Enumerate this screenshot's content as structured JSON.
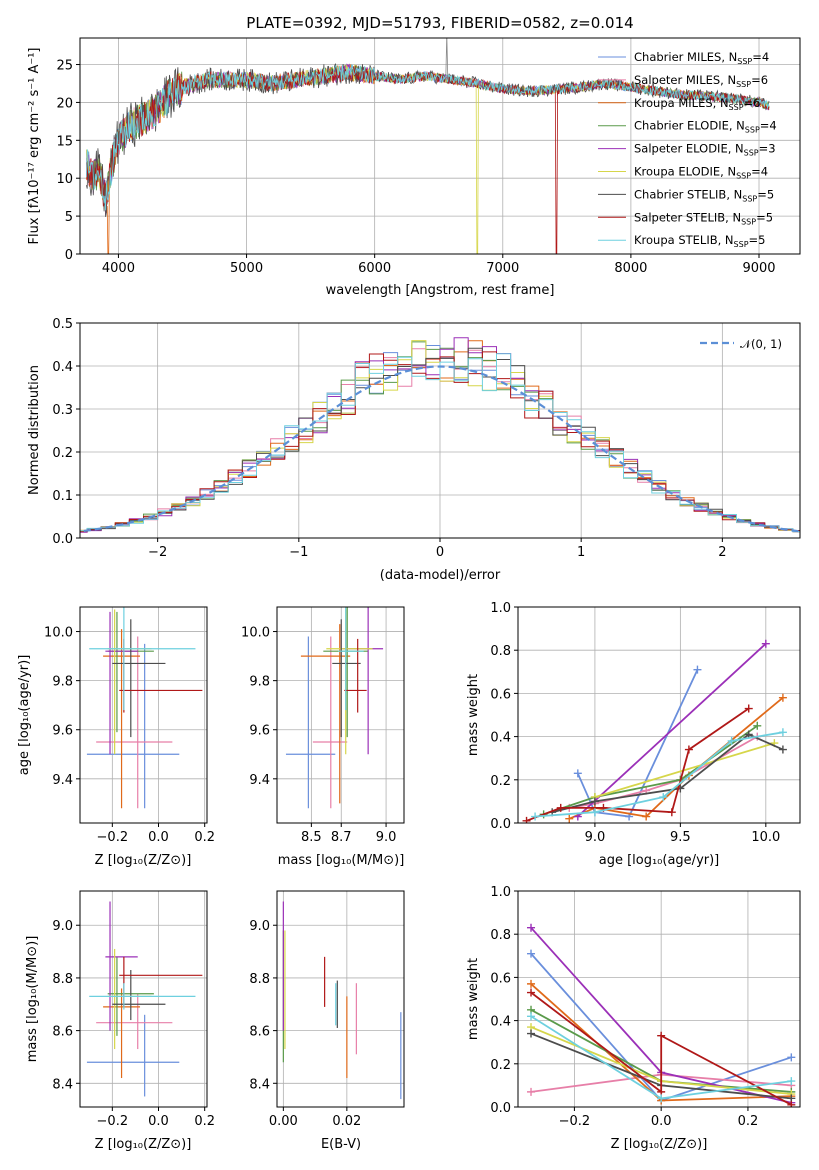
{
  "chart_data": [
    {
      "type": "line",
      "title": "PLATE=0392, MJD=51793, FIBERID=0582, z=0.014",
      "xlabel": "wavelength [Angstrom, rest frame]",
      "ylabel": "Flux [fλ10⁻¹⁷ erg cm⁻² s⁻¹ A⁻¹]",
      "xlim": [
        3700,
        9320
      ],
      "ylim": [
        0,
        28.5
      ],
      "xticks": [
        4000,
        5000,
        6000,
        7000,
        8000,
        9000
      ],
      "yticks": [
        0,
        5,
        10,
        15,
        20,
        25
      ],
      "legend_position": "top-right",
      "series": [
        {
          "name": "Chabrier MILES, N_SSP=4",
          "color": "#6a8fdc"
        },
        {
          "name": "Salpeter MILES, N_SSP=6",
          "color": "#e77fa8"
        },
        {
          "name": "Kroupa MILES, N_SSP=6",
          "color": "#e06a1a"
        },
        {
          "name": "Chabrier ELODIE, N_SSP=4",
          "color": "#5a9a4a"
        },
        {
          "name": "Salpeter ELODIE, N_SSP=3",
          "color": "#9b30b8"
        },
        {
          "name": "Kroupa ELODIE, N_SSP=4",
          "color": "#d6d64a"
        },
        {
          "name": "Chabrier STELIB, N_SSP=5",
          "color": "#4d4d4d"
        },
        {
          "name": "Salpeter STELIB, N_SSP=5",
          "color": "#b01818"
        },
        {
          "name": "Kroupa STELIB, N_SSP=5",
          "color": "#6ed0df"
        }
      ],
      "continuum": [
        [
          3750,
          12
        ],
        [
          3800,
          10
        ],
        [
          3850,
          11
        ],
        [
          3900,
          7
        ],
        [
          3950,
          12
        ],
        [
          4000,
          15
        ],
        [
          4100,
          17
        ],
        [
          4200,
          18
        ],
        [
          4300,
          19
        ],
        [
          4400,
          21
        ],
        [
          4500,
          22
        ],
        [
          4600,
          22.5
        ],
        [
          4700,
          23
        ],
        [
          4800,
          23
        ],
        [
          4900,
          23
        ],
        [
          5000,
          23
        ],
        [
          5200,
          22.5
        ],
        [
          5400,
          23
        ],
        [
          5600,
          23.5
        ],
        [
          5800,
          24
        ],
        [
          6000,
          23.5
        ],
        [
          6200,
          23
        ],
        [
          6400,
          23.5
        ],
        [
          6600,
          23
        ],
        [
          6800,
          22.5
        ],
        [
          7000,
          21.8
        ],
        [
          7200,
          21.5
        ],
        [
          7400,
          21.7
        ],
        [
          7600,
          22
        ],
        [
          7800,
          22.5
        ],
        [
          8000,
          22
        ],
        [
          8200,
          21.5
        ],
        [
          8400,
          21
        ],
        [
          8600,
          20.8
        ],
        [
          8800,
          20.5
        ],
        [
          9000,
          20
        ],
        [
          9080,
          19.5
        ]
      ],
      "drops": [
        {
          "series": "Kroupa MILES, N_SSP=6",
          "x": 3920,
          "to": 0
        },
        {
          "series": "Kroupa ELODIE, N_SSP=4",
          "x": 6800,
          "to": 0
        },
        {
          "series": "Salpeter STELIB, N_SSP=5",
          "x": 7420,
          "to": 0
        }
      ]
    },
    {
      "type": "histogram",
      "xlabel": "(data-model)/error",
      "ylabel": "Normed distribution",
      "xlim": [
        -2.55,
        2.55
      ],
      "ylim": [
        0,
        0.5
      ],
      "xticks": [
        -2,
        -1,
        0,
        1,
        2
      ],
      "yticks": [
        0.0,
        0.1,
        0.2,
        0.3,
        0.4,
        0.5
      ],
      "bin_width": 0.1,
      "legend": {
        "label": "𝒩(0, 1)",
        "position": "top-right"
      },
      "reference_curve": {
        "name": "𝒩(0, 1)",
        "mean": 0,
        "sigma": 1,
        "color": "#5b8fd6",
        "style": "dashed"
      }
    },
    {
      "type": "scatter",
      "xlabel": "Z [log₁₀(Z/Z⊙)]",
      "ylabel": "age  [log₁₀(age/yr)]",
      "xlim": [
        -0.34,
        0.21
      ],
      "ylim": [
        9.22,
        10.1
      ],
      "xticks": [
        -0.2,
        0.0,
        0.2
      ],
      "yticks": [
        9.4,
        9.6,
        9.8,
        10.0
      ],
      "errorbars": [
        {
          "color": "#6a8fdc",
          "x": -0.06,
          "xerr": [
            0.25,
            0.15
          ],
          "y": 9.5,
          "yerr": [
            0.22,
            0.45
          ]
        },
        {
          "color": "#e77fa8",
          "x": -0.09,
          "xerr": [
            0.18,
            0.15
          ],
          "y": 9.55,
          "yerr": [
            0.27,
            0.43
          ]
        },
        {
          "color": "#e06a1a",
          "x": -0.16,
          "xerr": [
            0.08,
            0.08
          ],
          "y": 9.9,
          "yerr": [
            0.62,
            0.11
          ]
        },
        {
          "color": "#5a9a4a",
          "x": -0.18,
          "xerr": [
            0.04,
            0.16
          ],
          "y": 9.92,
          "yerr": [
            0.33,
            0.16
          ]
        },
        {
          "color": "#9b30b8",
          "x": -0.21,
          "xerr": [
            0.02,
            0.12
          ],
          "y": 9.92,
          "yerr": [
            0.42,
            0.16
          ]
        },
        {
          "color": "#d6d64a",
          "x": -0.19,
          "xerr": [
            0.03,
            0.16
          ],
          "y": 9.93,
          "yerr": [
            0.43,
            0.16
          ]
        },
        {
          "color": "#4d4d4d",
          "x": -0.12,
          "xerr": [
            0.08,
            0.15
          ],
          "y": 9.87,
          "yerr": [
            0.3,
            0.18
          ]
        },
        {
          "color": "#b01818",
          "x": -0.15,
          "xerr": [
            0.02,
            0.34
          ],
          "y": 9.76,
          "yerr": [
            0.09,
            0.21
          ]
        },
        {
          "color": "#6ed0df",
          "x": -0.15,
          "xerr": [
            0.15,
            0.31
          ],
          "y": 9.93,
          "yerr": [
            0.25,
            0.17
          ]
        }
      ]
    },
    {
      "type": "scatter",
      "xlabel": "mass [log₁₀(M/M⊙)]",
      "ylabel": "",
      "xlim": [
        8.27,
        9.12
      ],
      "ylim": [
        9.22,
        10.1
      ],
      "xticks": [
        8.5,
        8.7,
        9.0
      ],
      "yticks": [
        9.4,
        9.6,
        9.8,
        10.0
      ],
      "errorbars": [
        {
          "color": "#6a8fdc",
          "x": 8.48,
          "xerr": [
            0.15,
            0.18
          ],
          "y": 9.5,
          "yerr": [
            0.22,
            0.48
          ]
        },
        {
          "color": "#e77fa8",
          "x": 8.63,
          "xerr": [
            0.12,
            0.11
          ],
          "y": 9.55,
          "yerr": [
            0.27,
            0.43
          ]
        },
        {
          "color": "#e06a1a",
          "x": 8.69,
          "xerr": [
            0.26,
            0.07
          ],
          "y": 9.9,
          "yerr": [
            0.6,
            0.13
          ]
        },
        {
          "color": "#5a9a4a",
          "x": 8.74,
          "xerr": [
            0.16,
            0.14
          ],
          "y": 9.92,
          "yerr": [
            0.35,
            0.18
          ]
        },
        {
          "color": "#9b30b8",
          "x": 8.88,
          "xerr": [
            0.17,
            0.1
          ],
          "y": 9.93,
          "yerr": [
            0.43,
            0.17
          ]
        },
        {
          "color": "#d6d64a",
          "x": 8.73,
          "xerr": [
            0.13,
            0.18
          ],
          "y": 9.93,
          "yerr": [
            0.43,
            0.16
          ]
        },
        {
          "color": "#4d4d4d",
          "x": 8.7,
          "xerr": [
            0.06,
            0.13
          ],
          "y": 9.87,
          "yerr": [
            0.3,
            0.18
          ]
        },
        {
          "color": "#b01818",
          "x": 8.81,
          "xerr": [
            0.09,
            0.06
          ],
          "y": 9.76,
          "yerr": [
            0.09,
            0.21
          ]
        },
        {
          "color": "#6ed0df",
          "x": 8.73,
          "xerr": [
            0.05,
            0.12
          ],
          "y": 9.92,
          "yerr": [
            0.24,
            0.18
          ]
        }
      ]
    },
    {
      "type": "line",
      "xlabel": "age  [log₁₀(age/yr)]",
      "ylabel": "mass weight",
      "xlim": [
        8.55,
        10.2
      ],
      "ylim": [
        0,
        1.0
      ],
      "xticks": [
        9.0,
        9.5,
        10.0
      ],
      "yticks": [
        0.0,
        0.2,
        0.4,
        0.6,
        0.8,
        1.0
      ],
      "series": [
        {
          "color": "#6a8fdc",
          "x": [
            8.9,
            9.0,
            9.2,
            9.6
          ],
          "y": [
            0.23,
            0.05,
            0.03,
            0.71
          ]
        },
        {
          "color": "#e77fa8",
          "x": [
            8.85,
            9.0,
            9.3,
            9.5,
            9.95
          ],
          "y": [
            0.07,
            0.09,
            0.15,
            0.2,
            0.4
          ]
        },
        {
          "color": "#e06a1a",
          "x": [
            8.85,
            9.0,
            9.3,
            9.55,
            10.1
          ],
          "y": [
            0.02,
            0.07,
            0.03,
            0.22,
            0.58
          ]
        },
        {
          "color": "#5a9a4a",
          "x": [
            8.7,
            9.0,
            9.5,
            9.95
          ],
          "y": [
            0.04,
            0.12,
            0.2,
            0.45
          ]
        },
        {
          "color": "#9b30b8",
          "x": [
            8.9,
            10.0
          ],
          "y": [
            0.03,
            0.83
          ]
        },
        {
          "color": "#d6d64a",
          "x": [
            9.0,
            10.05
          ],
          "y": [
            0.12,
            0.37
          ]
        },
        {
          "color": "#4d4d4d",
          "x": [
            8.75,
            9.0,
            9.5,
            9.9,
            10.1
          ],
          "y": [
            0.05,
            0.1,
            0.16,
            0.41,
            0.34
          ]
        },
        {
          "color": "#b01818",
          "x": [
            8.6,
            8.8,
            9.05,
            9.45,
            9.55,
            9.9
          ],
          "y": [
            0.01,
            0.07,
            0.07,
            0.05,
            0.34,
            0.53
          ]
        },
        {
          "color": "#6ed0df",
          "x": [
            8.65,
            9.0,
            9.4,
            9.8,
            10.1
          ],
          "y": [
            0.03,
            0.05,
            0.12,
            0.38,
            0.42
          ]
        }
      ]
    },
    {
      "type": "scatter",
      "xlabel": "Z [log₁₀(Z/Z⊙)]",
      "ylabel": "mass [log₁₀(M/M⊙)]",
      "xlim": [
        -0.34,
        0.21
      ],
      "ylim": [
        8.31,
        9.13
      ],
      "xticks": [
        -0.2,
        0.0,
        0.2
      ],
      "yticks": [
        8.4,
        8.6,
        8.8,
        9.0
      ],
      "errorbars": [
        {
          "color": "#6a8fdc",
          "x": -0.06,
          "xerr": [
            0.25,
            0.15
          ],
          "y": 8.48,
          "yerr": [
            0.13,
            0.18
          ]
        },
        {
          "color": "#e77fa8",
          "x": -0.09,
          "xerr": [
            0.18,
            0.15
          ],
          "y": 8.63,
          "yerr": [
            0.1,
            0.11
          ]
        },
        {
          "color": "#e06a1a",
          "x": -0.16,
          "xerr": [
            0.08,
            0.08
          ],
          "y": 8.69,
          "yerr": [
            0.27,
            0.07
          ]
        },
        {
          "color": "#5a9a4a",
          "x": -0.18,
          "xerr": [
            0.04,
            0.16
          ],
          "y": 8.74,
          "yerr": [
            0.16,
            0.14
          ]
        },
        {
          "color": "#9b30b8",
          "x": -0.21,
          "xerr": [
            0.02,
            0.12
          ],
          "y": 8.88,
          "yerr": [
            0.28,
            0.21
          ]
        },
        {
          "color": "#d6d64a",
          "x": -0.19,
          "xerr": [
            0.03,
            0.16
          ],
          "y": 8.73,
          "yerr": [
            0.2,
            0.18
          ]
        },
        {
          "color": "#4d4d4d",
          "x": -0.12,
          "xerr": [
            0.08,
            0.15
          ],
          "y": 8.7,
          "yerr": [
            0.06,
            0.13
          ]
        },
        {
          "color": "#b01818",
          "x": -0.15,
          "xerr": [
            0.02,
            0.34
          ],
          "y": 8.81,
          "yerr": [
            0.12,
            0.07
          ]
        },
        {
          "color": "#6ed0df",
          "x": -0.15,
          "xerr": [
            0.15,
            0.31
          ],
          "y": 8.73,
          "yerr": [
            0.05,
            0.05
          ]
        }
      ]
    },
    {
      "type": "scatter",
      "xlabel": "E(B-V)",
      "ylabel": "",
      "xlim": [
        -0.002,
        0.038
      ],
      "ylim": [
        8.31,
        9.13
      ],
      "xticks": [
        0.0,
        0.02
      ],
      "yticks": [
        8.4,
        8.6,
        8.8,
        9.0
      ],
      "errorbars": [
        {
          "color": "#6a8fdc",
          "x": 0.037,
          "y": 8.48,
          "yerr": [
            0.14,
            0.19
          ]
        },
        {
          "color": "#e77fa8",
          "x": 0.023,
          "y": 8.63,
          "yerr": [
            0.12,
            0.15
          ]
        },
        {
          "color": "#e06a1a",
          "x": 0.02,
          "y": 8.63,
          "yerr": [
            0.21,
            0.1
          ]
        },
        {
          "color": "#5a9a4a",
          "x": 0.0,
          "y": 8.7,
          "yerr": [
            0.22,
            0.28
          ]
        },
        {
          "color": "#9b30b8",
          "x": 0.0,
          "y": 8.88,
          "yerr": [
            0.28,
            0.21
          ]
        },
        {
          "color": "#d6d64a",
          "x": 0.0005,
          "y": 8.73,
          "yerr": [
            0.2,
            0.25
          ]
        },
        {
          "color": "#4d4d4d",
          "x": 0.017,
          "y": 8.7,
          "yerr": [
            0.09,
            0.09
          ]
        },
        {
          "color": "#b01818",
          "x": 0.013,
          "y": 8.79,
          "yerr": [
            0.1,
            0.09
          ]
        },
        {
          "color": "#6ed0df",
          "x": 0.0165,
          "y": 8.7,
          "yerr": [
            0.08,
            0.08
          ]
        }
      ]
    },
    {
      "type": "line",
      "xlabel": "Z [log₁₀(Z/Z⊙)]",
      "ylabel": "mass weight",
      "xlim": [
        -0.33,
        0.32
      ],
      "ylim": [
        0,
        1.0
      ],
      "xticks": [
        -0.2,
        0.0,
        0.2
      ],
      "yticks": [
        0.0,
        0.2,
        0.4,
        0.6,
        0.8,
        1.0
      ],
      "series": [
        {
          "color": "#6a8fdc",
          "x": [
            -0.3,
            0.0,
            0.3
          ],
          "y": [
            0.71,
            0.03,
            0.23
          ]
        },
        {
          "color": "#e77fa8",
          "x": [
            -0.3,
            0.0,
            0.3
          ],
          "y": [
            0.07,
            0.15,
            0.1
          ]
        },
        {
          "color": "#e06a1a",
          "x": [
            -0.3,
            0.0,
            0.3
          ],
          "y": [
            0.57,
            0.03,
            0.05
          ]
        },
        {
          "color": "#5a9a4a",
          "x": [
            -0.3,
            0.0,
            0.3
          ],
          "y": [
            0.45,
            0.12,
            0.07
          ]
        },
        {
          "color": "#9b30b8",
          "x": [
            -0.3,
            0.0,
            0.3
          ],
          "y": [
            0.83,
            0.16,
            0.02
          ]
        },
        {
          "color": "#d6d64a",
          "x": [
            -0.3,
            0.0,
            0.3
          ],
          "y": [
            0.37,
            0.12,
            0.06
          ]
        },
        {
          "color": "#4d4d4d",
          "x": [
            -0.3,
            0.0,
            0.3
          ],
          "y": [
            0.34,
            0.1,
            0.04
          ]
        },
        {
          "color": "#b01818",
          "x": [
            -0.3,
            0.0,
            0.0,
            0.3
          ],
          "y": [
            0.53,
            0.07,
            0.33,
            0.01
          ]
        },
        {
          "color": "#6ed0df",
          "x": [
            -0.3,
            0.0,
            0.3
          ],
          "y": [
            0.42,
            0.04,
            0.12
          ]
        }
      ]
    }
  ]
}
